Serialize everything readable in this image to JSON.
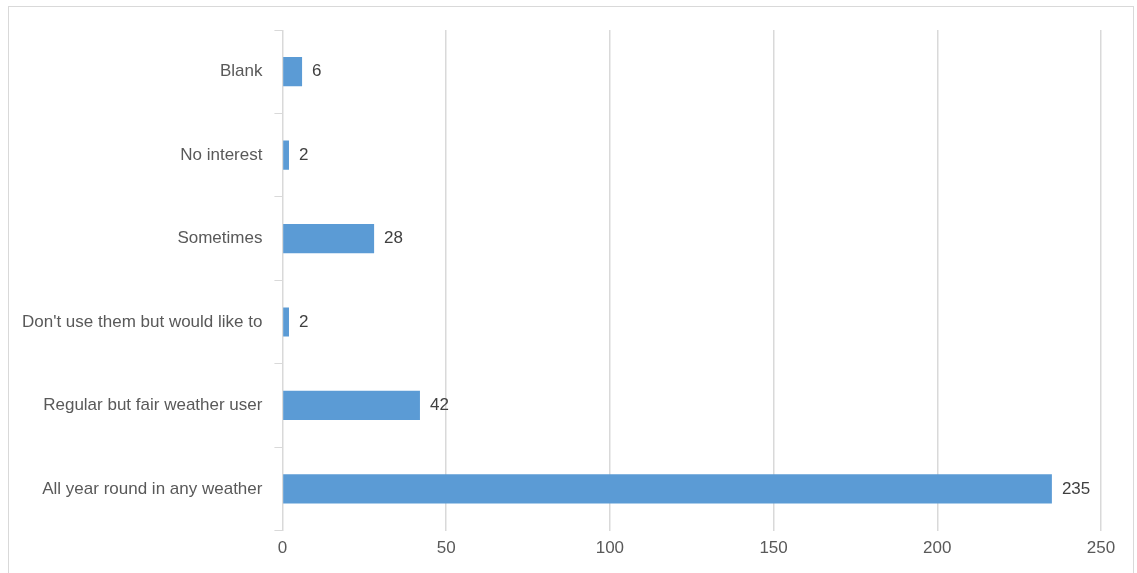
{
  "chart_data": {
    "type": "bar",
    "orientation": "horizontal",
    "categories": [
      "Blank",
      "No interest",
      "Sometimes",
      "Don't use them but would like to",
      "Regular but fair weather user",
      "All year round in any weather"
    ],
    "values": [
      6,
      2,
      28,
      2,
      42,
      235
    ],
    "color": "#5b9bd5",
    "xlim": [
      0,
      250
    ],
    "xticks": [
      0,
      50,
      100,
      150,
      200,
      250
    ],
    "grid": "x",
    "data_labels": true
  }
}
